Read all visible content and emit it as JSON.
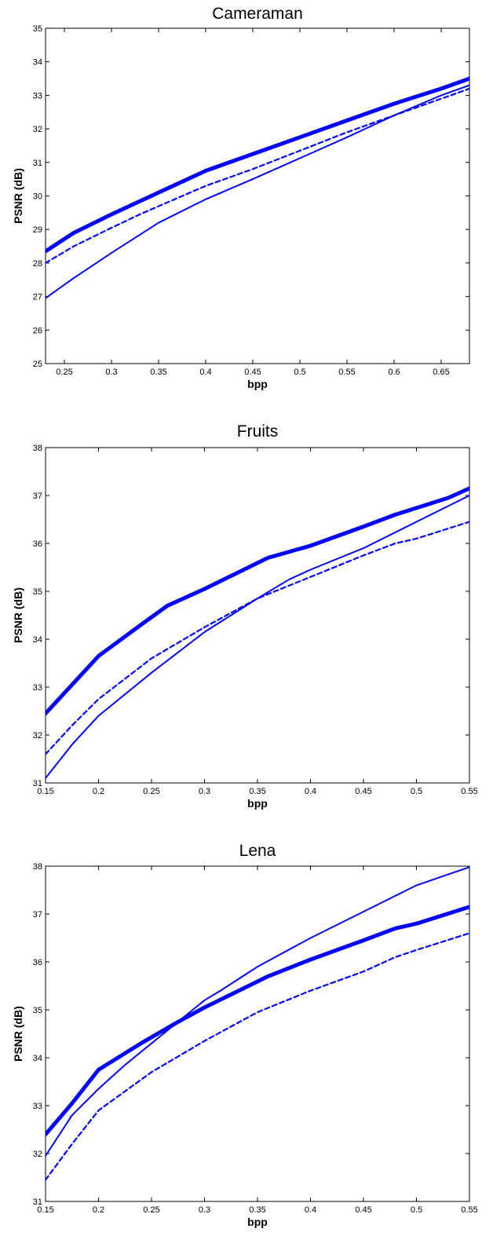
{
  "chart_data": [
    {
      "type": "line",
      "title": "Cameraman",
      "xlabel": "bpp",
      "ylabel": "PSNR (dB)",
      "xlim": [
        0.23,
        0.68
      ],
      "ylim": [
        25,
        35
      ],
      "xticks": [
        0.25,
        0.3,
        0.35,
        0.4,
        0.45,
        0.5,
        0.55,
        0.6,
        0.65
      ],
      "xtick_labels": [
        "0.25",
        "0.3",
        "0.35",
        "0.4",
        "0.45",
        "0.5",
        "0.55",
        "0.6",
        "0.65"
      ],
      "yticks": [
        25,
        26,
        27,
        28,
        29,
        30,
        31,
        32,
        33,
        34,
        35
      ],
      "ytick_labels": [
        "25",
        "26",
        "27",
        "28",
        "29",
        "30",
        "31",
        "32",
        "33",
        "34",
        "35"
      ],
      "grid": false,
      "color": "#0000ff",
      "series": [
        {
          "style": "thick solid",
          "x": [
            0.23,
            0.26,
            0.3,
            0.35,
            0.4,
            0.45,
            0.5,
            0.55,
            0.6,
            0.65,
            0.68
          ],
          "y": [
            28.35,
            28.9,
            29.45,
            30.1,
            30.75,
            31.25,
            31.75,
            32.25,
            32.75,
            33.2,
            33.5
          ]
        },
        {
          "style": "thin dashed",
          "x": [
            0.23,
            0.26,
            0.3,
            0.33,
            0.4,
            0.45,
            0.5,
            0.55,
            0.6,
            0.65,
            0.68
          ],
          "y": [
            28.0,
            28.5,
            29.05,
            29.45,
            30.3,
            30.8,
            31.35,
            31.9,
            32.4,
            32.9,
            33.2
          ]
        },
        {
          "style": "thin solid",
          "x": [
            0.23,
            0.26,
            0.3,
            0.35,
            0.4,
            0.45,
            0.49,
            0.55,
            0.6,
            0.65,
            0.68
          ],
          "y": [
            26.95,
            27.55,
            28.3,
            29.2,
            29.9,
            30.5,
            31.0,
            31.75,
            32.4,
            33.0,
            33.3
          ]
        }
      ]
    },
    {
      "type": "line",
      "title": "Fruits",
      "xlabel": "bpp",
      "ylabel": "PSNR (dB)",
      "xlim": [
        0.15,
        0.55
      ],
      "ylim": [
        31,
        38
      ],
      "xticks": [
        0.15,
        0.2,
        0.25,
        0.3,
        0.35,
        0.4,
        0.45,
        0.5,
        0.55
      ],
      "xtick_labels": [
        "0.15",
        "0.2",
        "0.25",
        "0.3",
        "0.35",
        "0.4",
        "0.45",
        "0.5",
        "0.55"
      ],
      "yticks": [
        31,
        32,
        33,
        34,
        35,
        36,
        37,
        38
      ],
      "ytick_labels": [
        "31",
        "32",
        "33",
        "34",
        "35",
        "36",
        "37",
        "38"
      ],
      "grid": false,
      "color": "#0000ff",
      "series": [
        {
          "style": "thick solid",
          "x": [
            0.15,
            0.175,
            0.2,
            0.24,
            0.265,
            0.3,
            0.36,
            0.4,
            0.45,
            0.48,
            0.53,
            0.55
          ],
          "y": [
            32.45,
            33.05,
            33.65,
            34.3,
            34.7,
            35.05,
            35.7,
            35.95,
            36.35,
            36.6,
            36.95,
            37.15
          ]
        },
        {
          "style": "thin dashed",
          "x": [
            0.15,
            0.175,
            0.2,
            0.25,
            0.3,
            0.35,
            0.4,
            0.45,
            0.48,
            0.5,
            0.55
          ],
          "y": [
            31.6,
            32.2,
            32.75,
            33.6,
            34.25,
            34.85,
            35.3,
            35.75,
            36.0,
            36.1,
            36.45
          ]
        },
        {
          "style": "thin solid",
          "x": [
            0.15,
            0.175,
            0.2,
            0.25,
            0.3,
            0.35,
            0.38,
            0.4,
            0.45,
            0.5,
            0.55
          ],
          "y": [
            31.1,
            31.8,
            32.4,
            33.3,
            34.15,
            34.85,
            35.25,
            35.45,
            35.9,
            36.45,
            37.0
          ]
        }
      ]
    },
    {
      "type": "line",
      "title": "Lena",
      "xlabel": "bpp",
      "ylabel": "PSNR (dB)",
      "xlim": [
        0.15,
        0.55
      ],
      "ylim": [
        31,
        38
      ],
      "xticks": [
        0.15,
        0.2,
        0.25,
        0.3,
        0.35,
        0.4,
        0.45,
        0.5,
        0.55
      ],
      "xtick_labels": [
        "0.15",
        "0.2",
        "0.25",
        "0.3",
        "0.35",
        "0.4",
        "0.45",
        "0.5",
        "0.55"
      ],
      "yticks": [
        31,
        32,
        33,
        34,
        35,
        36,
        37,
        38
      ],
      "ytick_labels": [
        "31",
        "32",
        "33",
        "34",
        "35",
        "36",
        "37",
        "38"
      ],
      "grid": false,
      "color": "#0000ff",
      "series": [
        {
          "style": "thick solid",
          "x": [
            0.15,
            0.175,
            0.2,
            0.24,
            0.275,
            0.3,
            0.36,
            0.4,
            0.45,
            0.48,
            0.5,
            0.55
          ],
          "y": [
            32.4,
            33.05,
            33.75,
            34.3,
            34.75,
            35.05,
            35.7,
            36.05,
            36.45,
            36.7,
            36.8,
            37.15
          ]
        },
        {
          "style": "thin dashed",
          "x": [
            0.15,
            0.175,
            0.2,
            0.25,
            0.3,
            0.35,
            0.4,
            0.45,
            0.48,
            0.5,
            0.55
          ],
          "y": [
            31.45,
            32.2,
            32.9,
            33.7,
            34.35,
            34.95,
            35.4,
            35.8,
            36.1,
            36.25,
            36.6
          ]
        },
        {
          "style": "thin solid",
          "x": [
            0.15,
            0.175,
            0.2,
            0.225,
            0.25,
            0.3,
            0.315,
            0.35,
            0.4,
            0.45,
            0.5,
            0.55
          ],
          "y": [
            31.95,
            32.8,
            33.35,
            33.85,
            34.3,
            35.2,
            35.4,
            35.9,
            36.5,
            37.05,
            37.6,
            37.98
          ]
        }
      ]
    }
  ]
}
